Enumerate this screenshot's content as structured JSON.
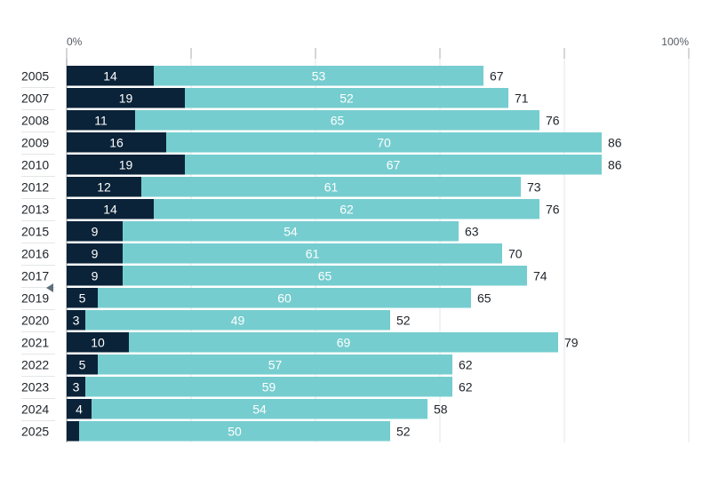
{
  "chart_data": {
    "type": "bar",
    "orientation": "horizontal",
    "stacked": true,
    "categories": [
      "2005",
      "2007",
      "2008",
      "2009",
      "2010",
      "2012",
      "2013",
      "2015",
      "2016",
      "2017",
      "2019",
      "2020",
      "2021",
      "2022",
      "2023",
      "2024",
      "2025"
    ],
    "series": [
      {
        "values": [
          14,
          19,
          11,
          16,
          19,
          12,
          14,
          9,
          9,
          9,
          5,
          3,
          10,
          5,
          3,
          4,
          2
        ],
        "color": "#0b2338",
        "label_color": "#ffffff"
      },
      {
        "values": [
          53,
          52,
          65,
          70,
          67,
          61,
          62,
          54,
          61,
          65,
          60,
          49,
          69,
          57,
          59,
          54,
          50
        ],
        "color": "#76cdcf",
        "label_color": "#ffffff"
      }
    ],
    "totals": [
      67,
      71,
      76,
      86,
      86,
      73,
      76,
      63,
      70,
      74,
      65,
      52,
      79,
      62,
      62,
      58,
      52
    ],
    "xlim": [
      0,
      100
    ],
    "x_tick_values": [
      0,
      20,
      40,
      60,
      80,
      100
    ],
    "x_tick_labels": [
      "0%",
      "",
      "",
      "",
      "",
      "100%"
    ],
    "axis_position": "top",
    "grid": true,
    "marker_category": "2019",
    "hidden_segment_labels": [
      [
        16,
        0
      ]
    ]
  }
}
